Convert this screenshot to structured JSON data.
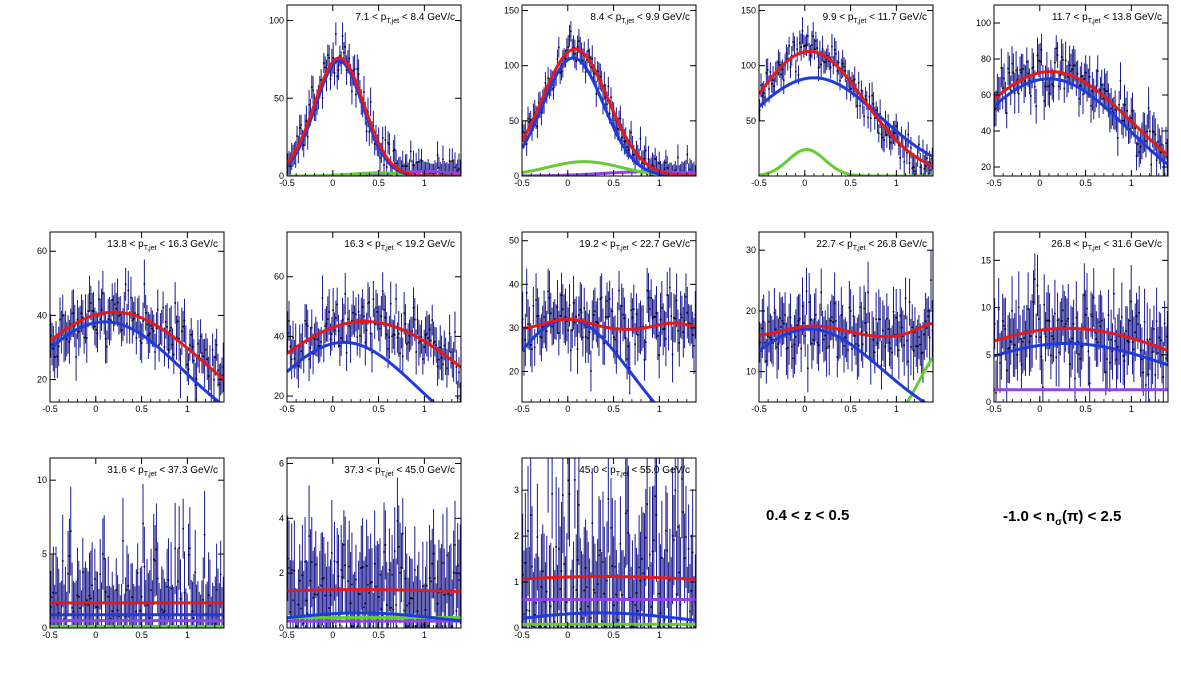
{
  "figure": {
    "annotations": {
      "z_range": "0.4 < z < 0.5",
      "nsigma_prefix": "-1.0 < n",
      "nsigma_sub": "σ",
      "nsigma_suffix": "(π) < 2.5"
    }
  },
  "colors": {
    "data": "#1a1a8c",
    "total": "#e31a1c",
    "pion": "#1f3bdd",
    "kaon": "#66cc33",
    "proton": "#8e44e8"
  },
  "chart_data": [
    {
      "type": "scatter",
      "title": "7.1 < p_{T,jet} < 8.4 GeV/c",
      "xlim": [
        -0.5,
        1.4
      ],
      "ylim": [
        0,
        110
      ],
      "xticks": [
        -0.5,
        0,
        0.5,
        1
      ],
      "xtick_labels": [
        "-0.5",
        "0",
        "0.5",
        "1"
      ],
      "yticks": [
        0,
        50,
        100
      ],
      "ytick_labels": [
        "0",
        "50",
        "100"
      ],
      "err": 8,
      "curves": {
        "total": {
          "amp": 76,
          "mu": 0.07,
          "sigma": 0.27,
          "base": 0
        },
        "pion": {
          "amp": 74,
          "mu": 0.07,
          "sigma": 0.26,
          "base": 0
        },
        "kaon": {
          "amp": 2,
          "mu": 0.5,
          "sigma": 0.3,
          "base": 0
        },
        "proton": {
          "amp": 3,
          "mu": 1.0,
          "sigma": 0.3,
          "base": 0
        }
      }
    },
    {
      "type": "scatter",
      "title": "8.4 < p_{T,jet} < 9.9 GeV/c",
      "xlim": [
        -0.5,
        1.4
      ],
      "ylim": [
        0,
        155
      ],
      "xticks": [
        -0.5,
        0,
        0.5,
        1
      ],
      "xtick_labels": [
        "-0.5",
        "0",
        "0.5",
        "1"
      ],
      "yticks": [
        0,
        50,
        100,
        150
      ],
      "ytick_labels": [
        "0",
        "50",
        "100",
        "150"
      ],
      "err": 10,
      "curves": {
        "total": {
          "amp": 115,
          "mu": 0.08,
          "sigma": 0.36,
          "base": 0
        },
        "pion": {
          "amp": 107,
          "mu": 0.06,
          "sigma": 0.33,
          "base": 0
        },
        "kaon": {
          "amp": 13,
          "mu": 0.18,
          "sigma": 0.4,
          "base": 0
        },
        "proton": {
          "amp": 4,
          "mu": 0.9,
          "sigma": 0.5,
          "base": 0
        }
      }
    },
    {
      "type": "scatter",
      "title": "9.9 < p_{T,jet} < 11.7 GeV/c",
      "xlim": [
        -0.5,
        1.4
      ],
      "ylim": [
        0,
        155
      ],
      "xticks": [
        -0.5,
        0,
        0.5,
        1
      ],
      "xtick_labels": [
        "-0.5",
        "0",
        "0.5",
        "1"
      ],
      "yticks": [
        50,
        100,
        150
      ],
      "ytick_labels": [
        "50",
        "100",
        "150"
      ],
      "err": 10,
      "curves": {
        "total": {
          "amp": 113,
          "mu": 0.05,
          "sigma": 0.6,
          "base": 0
        },
        "pion": {
          "amp": 89,
          "mu": 0.1,
          "sigma": 0.72,
          "base": 0
        },
        "kaon": {
          "amp": 24,
          "mu": 0.02,
          "sigma": 0.2,
          "base": 0
        },
        "proton": {
          "amp": 0,
          "mu": 0,
          "sigma": 1,
          "base": 0
        }
      }
    },
    {
      "type": "scatter",
      "title": "11.7 < p_{T,jet} < 13.8 GeV/c",
      "xlim": [
        -0.5,
        1.4
      ],
      "ylim": [
        15,
        110
      ],
      "xticks": [
        -0.5,
        0,
        0.5,
        1
      ],
      "xtick_labels": [
        "-0.5",
        "0",
        "0.5",
        "1"
      ],
      "yticks": [
        20,
        40,
        60,
        80,
        100
      ],
      "ytick_labels": [
        "20",
        "40",
        "60",
        "80",
        "100"
      ],
      "err": 9,
      "curves": {
        "total": {
          "amp": 73,
          "mu": 0.12,
          "sigma": 0.9,
          "base": 0
        },
        "pion": {
          "amp": 69,
          "mu": 0.1,
          "sigma": 0.85,
          "base": 0
        },
        "kaon": {
          "amp": 0,
          "mu": 0,
          "sigma": 1,
          "base": 0
        },
        "proton": {
          "amp": 0,
          "mu": 0,
          "sigma": 1,
          "base": 0
        }
      }
    },
    {
      "type": "scatter",
      "title": "13.8 < p_{T,jet} < 16.3 GeV/c",
      "xlim": [
        -0.5,
        1.4
      ],
      "ylim": [
        13,
        66
      ],
      "xticks": [
        -0.5,
        0,
        0.5,
        1
      ],
      "xtick_labels": [
        "-0.5",
        "0",
        "0.5",
        "1"
      ],
      "yticks": [
        20,
        40,
        60
      ],
      "ytick_labels": [
        "20",
        "40",
        "60"
      ],
      "err": 6,
      "curves": {
        "total": {
          "amp": 41,
          "mu": 0.2,
          "sigma": 1.0,
          "base": 0
        },
        "pion": {
          "amp": 38,
          "mu": 0.1,
          "sigma": 0.85,
          "base": 0
        },
        "kaon": {
          "amp": 0,
          "mu": 0,
          "sigma": 1,
          "base": 0
        },
        "proton": {
          "amp": 0,
          "mu": 0,
          "sigma": 1,
          "base": 0
        }
      }
    },
    {
      "type": "scatter",
      "title": "16.3 < p_{T,jet} < 19.2 GeV/c",
      "xlim": [
        -0.5,
        1.4
      ],
      "ylim": [
        18,
        75
      ],
      "xticks": [
        -0.5,
        0,
        0.5,
        1
      ],
      "xtick_labels": [
        "-0.5",
        "0",
        "0.5",
        "1"
      ],
      "yticks": [
        20,
        40,
        60
      ],
      "ytick_labels": [
        "20",
        "40",
        "60"
      ],
      "err": 6,
      "curves": {
        "total": {
          "amp": 45,
          "mu": 0.35,
          "sigma": 1.15,
          "base": 0
        },
        "pion": {
          "amp": 38,
          "mu": 0.12,
          "sigma": 0.8,
          "base": 0
        },
        "kaon": {
          "amp": 0,
          "mu": 0,
          "sigma": 1,
          "base": 0
        },
        "proton": {
          "amp": 0,
          "mu": 0,
          "sigma": 1,
          "base": 0
        }
      }
    },
    {
      "type": "scatter",
      "title": "19.2 < p_{T,jet} < 22.7 GeV/c",
      "xlim": [
        -0.5,
        1.4
      ],
      "ylim": [
        13,
        52
      ],
      "xticks": [
        -0.5,
        0,
        0.5,
        1
      ],
      "xtick_labels": [
        "-0.5",
        "0",
        "0.5",
        "1"
      ],
      "yticks": [
        20,
        30,
        40,
        50
      ],
      "ytick_labels": [
        "20",
        "30",
        "40",
        "50"
      ],
      "err": 5,
      "curves": {
        "total": {
          "amp": 2.5,
          "mu": 0.0,
          "sigma": 0.25,
          "base": 29.5,
          "bump": {
            "amp": 1.6,
            "mu": 1.15,
            "sigma": 0.2
          }
        },
        "pion": {
          "amp": 32,
          "mu": 0.0,
          "sigma": 0.7,
          "base": 0
        },
        "kaon": {
          "amp": 18,
          "mu": 1.6,
          "sigma": 0.25,
          "base": 0
        },
        "proton": {
          "amp": 0,
          "mu": 0,
          "sigma": 1,
          "base": 0
        }
      }
    },
    {
      "type": "scatter",
      "title": "22.7 < p_{T,jet} < 26.8 GeV/c",
      "xlim": [
        -0.5,
        1.4
      ],
      "ylim": [
        5,
        33
      ],
      "xticks": [
        -0.5,
        0,
        0.5,
        1
      ],
      "xtick_labels": [
        "-0.5",
        "0",
        "0.5",
        "1"
      ],
      "yticks": [
        10,
        20,
        30
      ],
      "ytick_labels": [
        "10",
        "20",
        "30"
      ],
      "err": 4,
      "curves": {
        "total": {
          "amp": 2,
          "mu": 0.1,
          "sigma": 0.35,
          "base": 15.5,
          "bump": {
            "amp": 2.5,
            "mu": 1.45,
            "sigma": 0.22
          }
        },
        "pion": {
          "amp": 17,
          "mu": 0.05,
          "sigma": 0.8,
          "base": 0
        },
        "kaon": {
          "amp": 14,
          "mu": 1.55,
          "sigma": 0.3,
          "base": 0
        },
        "proton": {
          "amp": 0,
          "mu": 0,
          "sigma": 1,
          "base": 0
        }
      }
    },
    {
      "type": "scatter",
      "title": "26.8 < p_{T,jet} < 31.6 GeV/c",
      "xlim": [
        -0.5,
        1.4
      ],
      "ylim": [
        0,
        18
      ],
      "xticks": [
        -0.5,
        0,
        0.5,
        1
      ],
      "xtick_labels": [
        "-0.5",
        "0",
        "0.5",
        "1"
      ],
      "yticks": [
        0,
        5,
        10,
        15
      ],
      "ytick_labels": [
        "0",
        "5",
        "10",
        "15"
      ],
      "err": 3,
      "curves": {
        "total": {
          "amp": 7.8,
          "mu": 0.3,
          "sigma": 1.3,
          "base": 0
        },
        "pion": {
          "amp": 6.2,
          "mu": 0.3,
          "sigma": 1.15,
          "base": 0
        },
        "kaon": {
          "amp": 0,
          "mu": 0,
          "sigma": 1,
          "base": 0
        },
        "proton": {
          "amp": 0,
          "mu": 0,
          "sigma": 1,
          "base": 1.3
        }
      }
    },
    {
      "type": "scatter",
      "title": "31.6 < p_{T,jet} < 37.3 GeV/c",
      "xlim": [
        -0.5,
        1.4
      ],
      "ylim": [
        0,
        11.5
      ],
      "xticks": [
        -0.5,
        0,
        0.5,
        1
      ],
      "xtick_labels": [
        "-0.5",
        "0",
        "0.5",
        "1"
      ],
      "yticks": [
        0,
        5,
        10
      ],
      "ytick_labels": [
        "0",
        "5",
        "10"
      ],
      "err": 2.5,
      "curves": {
        "total": {
          "amp": 0,
          "mu": 0,
          "sigma": 1,
          "base": 1.7
        },
        "pion": {
          "amp": 0,
          "mu": 0,
          "sigma": 1,
          "base": 0.9
        },
        "kaon": {
          "amp": 0,
          "mu": 0,
          "sigma": 1,
          "base": 0.1
        },
        "proton": {
          "amp": 0,
          "mu": 0,
          "sigma": 1,
          "base": 0.5
        }
      }
    },
    {
      "type": "scatter",
      "title": "37.3 < p_{T,jet} < 45.0 GeV/c",
      "xlim": [
        -0.5,
        1.4
      ],
      "ylim": [
        0,
        6.2
      ],
      "xticks": [
        -0.5,
        0,
        0.5,
        1
      ],
      "xtick_labels": [
        "-0.5",
        "0",
        "0.5",
        "1"
      ],
      "yticks": [
        0,
        2,
        4,
        6
      ],
      "ytick_labels": [
        "0",
        "2",
        "4",
        "6"
      ],
      "err": 1.5,
      "curves": {
        "total": {
          "amp": 0.15,
          "mu": 0.3,
          "sigma": 1.0,
          "base": 1.25
        },
        "pion": {
          "amp": 0.55,
          "mu": 0.3,
          "sigma": 0.9,
          "base": 0
        },
        "kaon": {
          "amp": 0,
          "mu": 0,
          "sigma": 1,
          "base": 0.38
        },
        "proton": {
          "amp": 0,
          "mu": 0,
          "sigma": 1,
          "base": 0.25
        }
      }
    },
    {
      "type": "scatter",
      "title": "45.0 < p_{T,jet} < 55.0 GeV/c",
      "xlim": [
        -0.5,
        1.4
      ],
      "ylim": [
        0,
        3.7
      ],
      "xticks": [
        -0.5,
        0,
        0.5,
        1
      ],
      "xtick_labels": [
        "-0.5",
        "0",
        "0.5",
        "1"
      ],
      "yticks": [
        0,
        1,
        2,
        3
      ],
      "ytick_labels": [
        "0",
        "1",
        "2",
        "3"
      ],
      "err": 1.2,
      "curves": {
        "total": {
          "amp": 0.15,
          "mu": 0.4,
          "sigma": 1.0,
          "base": 0.97
        },
        "pion": {
          "amp": 0.33,
          "mu": 0.35,
          "sigma": 0.9,
          "base": 0
        },
        "kaon": {
          "amp": 0,
          "mu": 0,
          "sigma": 1,
          "base": 0.08
        },
        "proton": {
          "amp": 0,
          "mu": 0,
          "sigma": 1,
          "base": 0.62
        }
      }
    }
  ]
}
